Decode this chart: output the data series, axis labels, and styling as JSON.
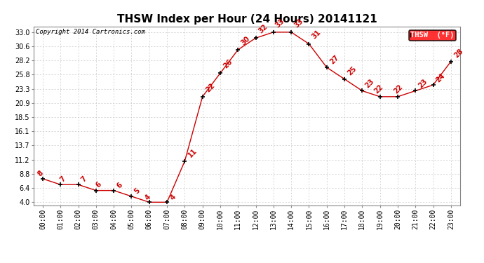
{
  "title": "THSW Index per Hour (24 Hours) 20141121",
  "copyright": "Copyright 2014 Cartronics.com",
  "legend_label": "THSW  (°F)",
  "hours": [
    "00:00",
    "01:00",
    "02:00",
    "03:00",
    "04:00",
    "05:00",
    "06:00",
    "07:00",
    "08:00",
    "09:00",
    "10:00",
    "11:00",
    "12:00",
    "13:00",
    "14:00",
    "15:00",
    "16:00",
    "17:00",
    "18:00",
    "19:00",
    "20:00",
    "21:00",
    "22:00",
    "23:00"
  ],
  "values": [
    8,
    7,
    7,
    6,
    6,
    5,
    4,
    4,
    11,
    22,
    26,
    30,
    32,
    33,
    33,
    31,
    27,
    25,
    23,
    22,
    22,
    23,
    24,
    28
  ],
  "yticks": [
    4.0,
    6.4,
    8.8,
    11.2,
    13.7,
    16.1,
    18.5,
    20.9,
    23.3,
    25.8,
    28.2,
    30.6,
    33.0
  ],
  "ylim": [
    3.5,
    34.0
  ],
  "line_color": "#cc0000",
  "marker_color": "#000000",
  "bg_color": "#ffffff",
  "grid_color": "#c8c8c8",
  "title_fontsize": 11,
  "tick_fontsize": 7,
  "copyright_fontsize": 6.5,
  "annot_fontsize": 7,
  "legend_fontsize": 7.5
}
